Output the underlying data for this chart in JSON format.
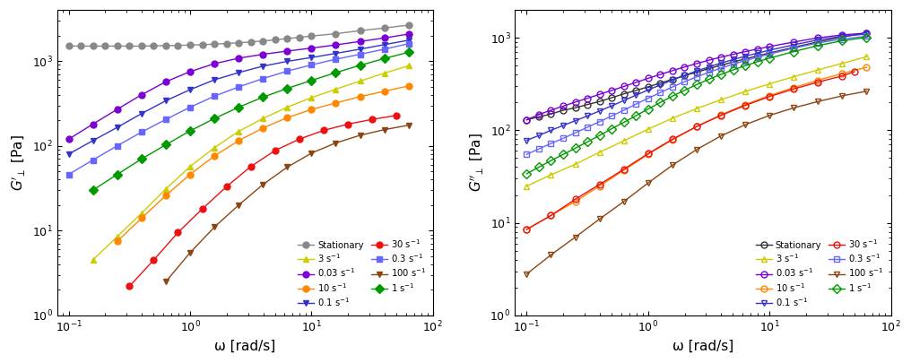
{
  "series": [
    {
      "label": "Stationary",
      "color_left": "#888888",
      "color_right": "#333333",
      "marker_left": "o",
      "marker_right": "o",
      "Gprime": {
        "omega": [
          0.1,
          0.126,
          0.158,
          0.2,
          0.251,
          0.316,
          0.398,
          0.501,
          0.631,
          0.794,
          1.0,
          1.259,
          1.585,
          1.995,
          2.512,
          3.162,
          3.981,
          5.012,
          6.31,
          7.943,
          10.0,
          15.85,
          25.12,
          39.81,
          63.1
        ],
        "G": [
          1500,
          1500,
          1500,
          1500,
          1500,
          1500,
          1500,
          1510,
          1520,
          1530,
          1540,
          1560,
          1580,
          1610,
          1640,
          1680,
          1720,
          1780,
          1840,
          1900,
          1970,
          2100,
          2280,
          2450,
          2650
        ]
      },
      "Gdprime": {
        "omega": [
          0.1,
          0.126,
          0.158,
          0.2,
          0.251,
          0.316,
          0.398,
          0.501,
          0.631,
          0.794,
          1.0,
          1.259,
          1.585,
          1.995,
          2.512,
          3.162,
          3.981,
          5.012,
          6.31,
          7.943,
          10.0,
          15.85,
          25.12,
          39.81,
          63.1
        ],
        "G": [
          130,
          140,
          150,
          165,
          175,
          190,
          205,
          225,
          248,
          270,
          295,
          325,
          355,
          390,
          425,
          465,
          505,
          548,
          592,
          638,
          685,
          790,
          905,
          1020,
          1135
        ]
      }
    },
    {
      "label": "0.03 s⁻¹",
      "color_left": "#7B00D4",
      "color_right": "#7B00D4",
      "marker_left": "o",
      "marker_right": "o",
      "Gprime": {
        "omega": [
          0.1,
          0.158,
          0.251,
          0.398,
          0.631,
          1.0,
          1.585,
          2.512,
          3.981,
          6.31,
          10.0,
          15.85,
          25.12,
          39.81,
          63.1
        ],
        "G": [
          120,
          180,
          270,
          400,
          570,
          750,
          930,
          1080,
          1200,
          1310,
          1420,
          1550,
          1700,
          1870,
          2080
        ]
      },
      "Gdprime": {
        "omega": [
          0.1,
          0.126,
          0.158,
          0.2,
          0.251,
          0.316,
          0.398,
          0.501,
          0.631,
          0.794,
          1.0,
          1.259,
          1.585,
          1.995,
          2.512,
          3.162,
          3.981,
          5.012,
          6.31,
          7.943,
          10.0,
          15.85,
          25.12,
          39.81,
          63.1
        ],
        "G": [
          130,
          148,
          165,
          183,
          202,
          222,
          245,
          270,
          298,
          330,
          365,
          402,
          442,
          484,
          528,
          573,
          618,
          663,
          710,
          757,
          805,
          900,
          1000,
          1075,
          1125
        ]
      }
    },
    {
      "label": "0.1 s⁻¹",
      "color_left": "#3333CC",
      "color_right": "#3333CC",
      "marker_left": "v",
      "marker_right": "v",
      "Gprime": {
        "omega": [
          0.1,
          0.158,
          0.251,
          0.398,
          0.631,
          1.0,
          1.585,
          2.512,
          3.981,
          6.31,
          10.0,
          15.85,
          25.12,
          39.81,
          63.1
        ],
        "G": [
          80,
          115,
          165,
          240,
          340,
          460,
          600,
          730,
          870,
          990,
          1100,
          1230,
          1380,
          1560,
          1760
        ]
      },
      "Gdprime": {
        "omega": [
          0.1,
          0.126,
          0.158,
          0.2,
          0.251,
          0.316,
          0.398,
          0.501,
          0.631,
          0.794,
          1.0,
          1.259,
          1.585,
          1.995,
          2.512,
          3.162,
          3.981,
          5.012,
          6.31,
          7.943,
          10.0,
          15.85,
          25.12,
          39.81,
          63.1
        ],
        "G": [
          78,
          88,
          100,
          113,
          127,
          143,
          162,
          184,
          210,
          240,
          273,
          310,
          350,
          393,
          438,
          485,
          533,
          582,
          632,
          683,
          735,
          840,
          950,
          1040,
          1100
        ]
      }
    },
    {
      "label": "0.3 s⁻¹",
      "color_left": "#6666FF",
      "color_right": "#6666FF",
      "marker_left": "s",
      "marker_right": "s",
      "Gprime": {
        "omega": [
          0.1,
          0.158,
          0.251,
          0.398,
          0.631,
          1.0,
          1.585,
          2.512,
          3.981,
          6.31,
          10.0,
          15.85,
          25.12,
          39.81,
          63.1
        ],
        "G": [
          46,
          68,
          100,
          145,
          205,
          285,
          385,
          495,
          620,
          760,
          900,
          1050,
          1200,
          1380,
          1600
        ]
      },
      "Gdprime": {
        "omega": [
          0.1,
          0.126,
          0.158,
          0.2,
          0.251,
          0.316,
          0.398,
          0.501,
          0.631,
          0.794,
          1.0,
          1.259,
          1.585,
          1.995,
          2.512,
          3.162,
          3.981,
          5.012,
          6.31,
          7.943,
          10.0,
          15.85,
          25.12,
          39.81,
          63.1
        ],
        "G": [
          55,
          63,
          72,
          82,
          94,
          108,
          124,
          143,
          165,
          192,
          222,
          256,
          294,
          335,
          378,
          424,
          471,
          519,
          568,
          618,
          668,
          772,
          880,
          970,
          1040
        ]
      }
    },
    {
      "label": "1 s⁻¹",
      "color_left": "#009900",
      "color_right": "#009900",
      "marker_left": "D",
      "marker_right": "D",
      "Gprime": {
        "omega": [
          0.158,
          0.251,
          0.398,
          0.631,
          1.0,
          1.585,
          2.512,
          3.981,
          6.31,
          10.0,
          15.85,
          25.12,
          39.81,
          63.1
        ],
        "G": [
          30,
          46,
          70,
          103,
          150,
          210,
          285,
          375,
          475,
          590,
          730,
          890,
          1070,
          1270
        ]
      },
      "Gdprime": {
        "omega": [
          0.1,
          0.126,
          0.158,
          0.2,
          0.251,
          0.316,
          0.398,
          0.501,
          0.631,
          0.794,
          1.0,
          1.259,
          1.585,
          1.995,
          2.512,
          3.162,
          3.981,
          5.012,
          6.31,
          7.943,
          10.0,
          15.85,
          25.12,
          39.81,
          63.1
        ],
        "G": [
          34,
          40,
          47,
          55,
          64,
          75,
          88,
          104,
          122,
          144,
          170,
          200,
          234,
          271,
          312,
          356,
          402,
          450,
          500,
          551,
          603,
          710,
          825,
          930,
          1010
        ]
      }
    },
    {
      "label": "3 s⁻¹",
      "color_left": "#CCCC00",
      "color_right": "#CCCC00",
      "marker_left": "^",
      "marker_right": "^",
      "Gprime": {
        "omega": [
          0.158,
          0.251,
          0.398,
          0.631,
          1.0,
          1.585,
          2.512,
          3.981,
          6.31,
          10.0,
          15.85,
          25.12,
          39.81,
          63.1
        ],
        "G": [
          4.5,
          8.5,
          16,
          31,
          57,
          95,
          148,
          210,
          285,
          370,
          465,
          580,
          720,
          880
        ]
      },
      "Gdprime": {
        "omega": [
          0.1,
          0.158,
          0.251,
          0.398,
          0.631,
          1.0,
          1.585,
          2.512,
          3.981,
          6.31,
          10.0,
          15.85,
          25.12,
          39.81,
          63.1
        ],
        "G": [
          25,
          33,
          43,
          58,
          77,
          103,
          135,
          172,
          214,
          263,
          318,
          380,
          450,
          530,
          625
        ]
      }
    },
    {
      "label": "10 s⁻¹",
      "color_left": "#FF8800",
      "color_right": "#FF8800",
      "marker_left": "o",
      "marker_right": "o",
      "Gprime": {
        "omega": [
          0.251,
          0.398,
          0.631,
          1.0,
          1.585,
          2.512,
          3.981,
          6.31,
          10.0,
          15.85,
          25.12,
          39.81,
          63.1
        ],
        "G": [
          7.5,
          14,
          26,
          46,
          76,
          115,
          162,
          215,
          268,
          320,
          380,
          440,
          508
        ]
      },
      "Gdprime": {
        "omega": [
          0.1,
          0.158,
          0.251,
          0.398,
          0.631,
          1.0,
          1.585,
          2.512,
          3.981,
          6.31,
          10.0,
          15.85,
          25.12,
          39.81,
          63.1
        ],
        "G": [
          8.5,
          12,
          17,
          25,
          37,
          55,
          79,
          110,
          147,
          190,
          238,
          290,
          348,
          412,
          480
        ]
      }
    },
    {
      "label": "30 s⁻¹",
      "color_left": "#EE1111",
      "color_right": "#EE1111",
      "marker_left": "o",
      "marker_right": "o",
      "Gprime": {
        "omega": [
          0.316,
          0.501,
          0.794,
          1.259,
          1.995,
          3.162,
          5.012,
          7.943,
          12.59,
          19.95,
          31.62,
          50.12
        ],
        "G": [
          2.2,
          4.5,
          9.5,
          18,
          33,
          57,
          88,
          120,
          152,
          180,
          205,
          228
        ]
      },
      "Gdprime": {
        "omega": [
          0.1,
          0.158,
          0.251,
          0.398,
          0.631,
          1.0,
          1.585,
          2.512,
          3.981,
          6.31,
          10.0,
          15.85,
          25.12,
          39.81,
          50.12
        ],
        "G": [
          8.5,
          12,
          18,
          26,
          38,
          56,
          80,
          110,
          145,
          186,
          232,
          280,
          332,
          388,
          430
        ]
      }
    },
    {
      "label": "100 s⁻¹",
      "color_left": "#8B4513",
      "color_right": "#8B4513",
      "marker_left": "v",
      "marker_right": "v",
      "Gprime": {
        "omega": [
          0.631,
          1.0,
          1.585,
          2.512,
          3.981,
          6.31,
          10.0,
          15.85,
          25.12,
          39.81,
          63.1
        ],
        "G": [
          2.5,
          5.5,
          11,
          20,
          35,
          56,
          82,
          108,
          133,
          155,
          175
        ]
      },
      "Gdprime": {
        "omega": [
          0.1,
          0.158,
          0.251,
          0.398,
          0.631,
          1.0,
          1.585,
          2.512,
          3.981,
          6.31,
          10.0,
          15.85,
          25.12,
          39.81,
          63.1
        ],
        "G": [
          2.8,
          4.5,
          7,
          11,
          17,
          27,
          42,
          62,
          87,
          115,
          145,
          175,
          205,
          236,
          265
        ]
      }
    }
  ],
  "xlabel": "ω [rad/s]",
  "xlim": [
    0.08,
    100
  ],
  "ylim_left": [
    1.0,
    4000
  ],
  "ylim_right": [
    1.0,
    2000
  ],
  "background_color": "#ffffff",
  "legend_left": [
    "Stationary",
    "0.03 s⁻¹",
    "0.1 s⁻¹",
    "0.3 s⁻¹",
    "1 s⁻¹",
    "3 s⁻¹",
    "10 s⁻¹",
    "30 s⁻¹",
    "100 s⁻¹"
  ]
}
